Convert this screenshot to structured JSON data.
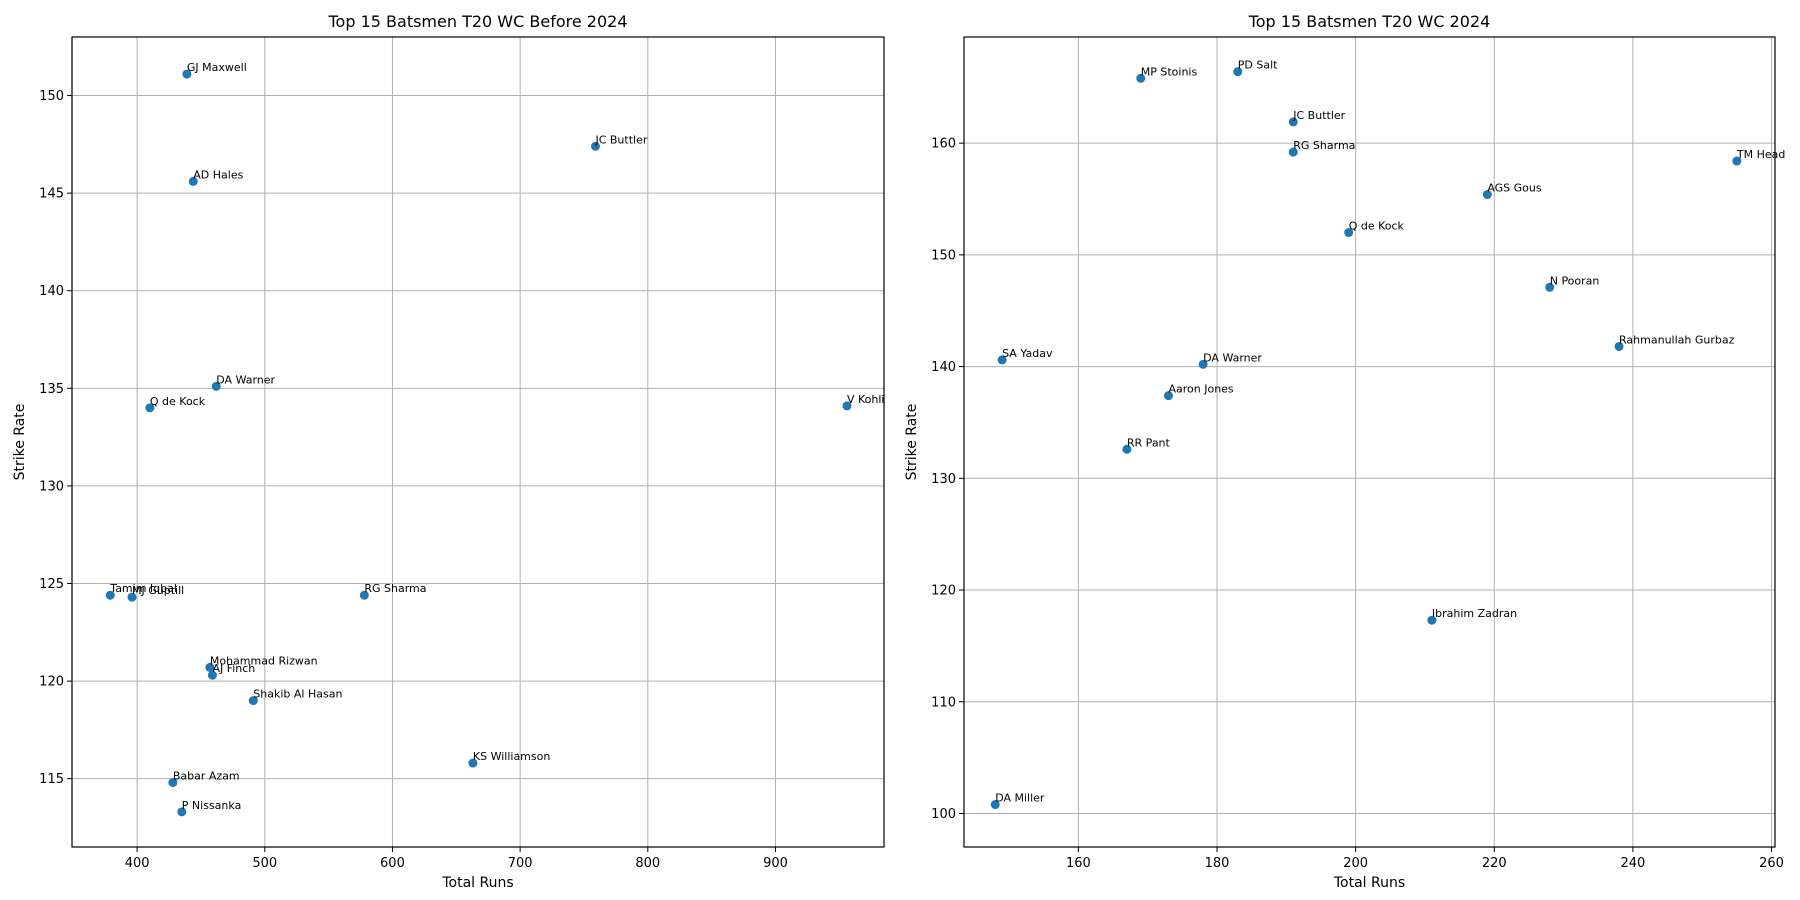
{
  "chart_data": [
    {
      "type": "scatter",
      "title": "Top 15 Batsmen T20 WC Before 2024",
      "xlabel": "Total Runs",
      "ylabel": "Strike Rate",
      "xlim": [
        349,
        985
      ],
      "ylim": [
        111.5,
        153
      ],
      "xticks": [
        400,
        500,
        600,
        700,
        800,
        900
      ],
      "yticks": [
        115,
        120,
        125,
        130,
        135,
        140,
        145,
        150
      ],
      "grid": true,
      "marker_color": "#1f77b4",
      "points": [
        {
          "label": "GJ Maxwell",
          "x": 439,
          "y": 151.1
        },
        {
          "label": "JC Buttler",
          "x": 759,
          "y": 147.4
        },
        {
          "label": "AD Hales",
          "x": 444,
          "y": 145.6
        },
        {
          "label": "DA Warner",
          "x": 462,
          "y": 135.1
        },
        {
          "label": "Q de Kock",
          "x": 410,
          "y": 134.0
        },
        {
          "label": "V Kohli",
          "x": 956,
          "y": 134.1
        },
        {
          "label": "Tamim Iqbal",
          "x": 379,
          "y": 124.4
        },
        {
          "label": "MJ Guptill",
          "x": 396,
          "y": 124.3
        },
        {
          "label": "RG Sharma",
          "x": 578,
          "y": 124.4
        },
        {
          "label": "Mohammad Rizwan",
          "x": 457,
          "y": 120.7
        },
        {
          "label": "AJ Finch",
          "x": 459,
          "y": 120.3
        },
        {
          "label": "Shakib Al Hasan",
          "x": 491,
          "y": 119.0
        },
        {
          "label": "KS Williamson",
          "x": 663,
          "y": 115.8
        },
        {
          "label": "Babar Azam",
          "x": 428,
          "y": 114.8
        },
        {
          "label": "P Nissanka",
          "x": 435,
          "y": 113.3
        }
      ]
    },
    {
      "type": "scatter",
      "title": "Top 15 Batsmen T20 WC 2024",
      "xlabel": "Total Runs",
      "ylabel": "Strike Rate",
      "xlim": [
        143.5,
        260.5
      ],
      "ylim": [
        97,
        169.5
      ],
      "xticks": [
        160,
        180,
        200,
        220,
        240,
        260
      ],
      "yticks": [
        100,
        110,
        120,
        130,
        140,
        150,
        160
      ],
      "grid": true,
      "marker_color": "#1f77b4",
      "points": [
        {
          "label": "MP Stoinis",
          "x": 169,
          "y": 165.8
        },
        {
          "label": "PD Salt",
          "x": 183,
          "y": 166.4
        },
        {
          "label": "JC Buttler",
          "x": 191,
          "y": 161.9
        },
        {
          "label": "RG Sharma",
          "x": 191,
          "y": 159.2
        },
        {
          "label": "TM Head",
          "x": 255,
          "y": 158.4
        },
        {
          "label": "AGS Gous",
          "x": 219,
          "y": 155.4
        },
        {
          "label": "Q de Kock",
          "x": 199,
          "y": 152.0
        },
        {
          "label": "N Pooran",
          "x": 228,
          "y": 147.1
        },
        {
          "label": "Rahmanullah Gurbaz",
          "x": 238,
          "y": 141.8
        },
        {
          "label": "SA Yadav",
          "x": 149,
          "y": 140.6
        },
        {
          "label": "DA Warner",
          "x": 178,
          "y": 140.2
        },
        {
          "label": "Aaron Jones",
          "x": 173,
          "y": 137.4
        },
        {
          "label": "RR Pant",
          "x": 167,
          "y": 132.6
        },
        {
          "label": "Ibrahim Zadran",
          "x": 211,
          "y": 117.3
        },
        {
          "label": "DA Miller",
          "x": 148,
          "y": 100.8
        }
      ]
    }
  ]
}
